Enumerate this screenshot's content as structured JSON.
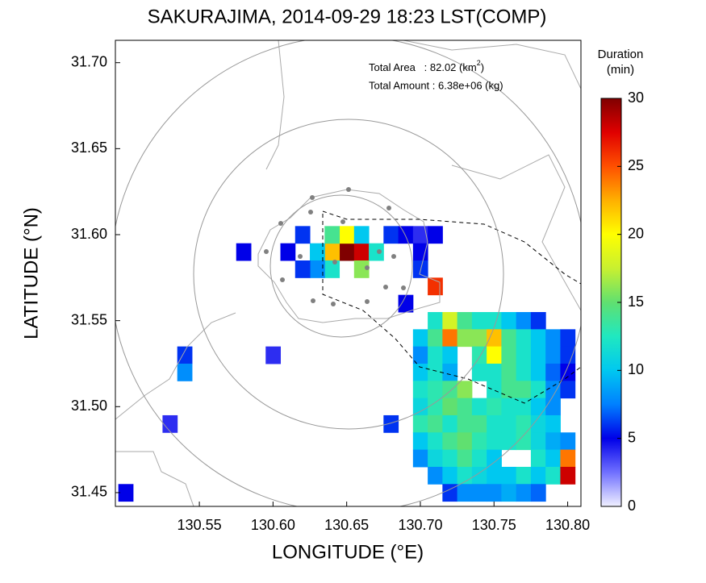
{
  "chart_data": {
    "type": "heatmap",
    "title": "SAKURAJIMA, 2014-09-29 18:23 LST(COMP)",
    "xlabel": "LONGITUDE (°E)",
    "ylabel": "LATITUDE (°N)",
    "xlim": [
      130.493,
      130.809
    ],
    "ylim": [
      31.442,
      31.713
    ],
    "xticks": [
      130.55,
      {
        "value": 130.6,
        "label": "130.60"
      },
      130.65,
      {
        "value": 130.7,
        "label": "130.70"
      },
      130.75,
      {
        "value": 130.8,
        "label": "130.80"
      }
    ],
    "yticks": [
      {
        "value": 31.45,
        "label": "31.45"
      },
      {
        "value": 31.5,
        "label": "31.50"
      },
      {
        "value": 31.55,
        "label": "31.55"
      },
      {
        "value": 31.6,
        "label": "31.60"
      },
      {
        "value": 31.65,
        "label": "31.65"
      },
      {
        "value": 31.7,
        "label": "31.70"
      }
    ],
    "annotations": {
      "area": {
        "text": "Total Area   : 82.02 (km",
        "sup": "2",
        "close": ")"
      },
      "amount": "Total Amount : 6.38e+06 (kg)"
    },
    "colorbar_title": [
      "Duration",
      "(min)"
    ],
    "clim": [
      0,
      30
    ],
    "cticks": [
      0,
      5,
      10,
      15,
      20,
      25,
      30
    ],
    "colormap": [
      "#f0f0ff",
      "#7070ff",
      "#0000e8",
      "#0080ff",
      "#00c8f0",
      "#20e8c0",
      "#60e070",
      "#c8f030",
      "#ffff00",
      "#ffb000",
      "#ff5000",
      "#e00000",
      "#800000"
    ],
    "x": [
      130.65,
      130.66,
      130.64,
      130.65,
      130.64,
      130.63,
      130.62,
      130.61,
      130.66,
      130.67,
      130.66,
      130.64,
      130.63,
      130.62,
      130.68,
      130.69,
      130.7,
      130.7,
      130.71,
      130.7,
      130.71,
      130.69,
      130.58,
      130.54,
      130.54,
      130.6,
      130.53,
      130.5,
      130.68,
      130.71,
      130.72,
      130.73,
      130.74,
      130.75,
      130.76,
      130.77,
      130.78,
      130.7,
      130.71,
      130.72,
      130.73,
      130.74,
      130.75,
      130.76,
      130.77,
      130.78,
      130.79,
      130.8,
      130.7,
      130.71,
      130.72,
      130.74,
      130.75,
      130.76,
      130.77,
      130.78,
      130.79,
      130.8,
      130.7,
      130.71,
      130.72,
      130.74,
      130.75,
      130.76,
      130.77,
      130.78,
      130.79,
      130.8,
      130.7,
      130.71,
      130.72,
      130.73,
      130.75,
      130.76,
      130.77,
      130.78,
      130.79,
      130.8,
      130.7,
      130.71,
      130.72,
      130.73,
      130.74,
      130.75,
      130.76,
      130.77,
      130.78,
      130.79,
      130.7,
      130.71,
      130.72,
      130.73,
      130.74,
      130.75,
      130.76,
      130.77,
      130.78,
      130.79,
      130.7,
      130.71,
      130.72,
      130.73,
      130.74,
      130.75,
      130.76,
      130.77,
      130.78,
      130.79,
      130.8,
      130.7,
      130.71,
      130.72,
      130.73,
      130.74,
      130.75,
      130.78,
      130.79,
      130.8,
      130.71,
      130.72,
      130.73,
      130.74,
      130.75,
      130.76,
      130.77,
      130.78,
      130.79,
      130.8,
      130.72,
      130.73,
      130.74,
      130.75,
      130.76,
      130.77,
      130.78
    ],
    "y": [
      31.59,
      31.59,
      31.59,
      31.6,
      31.6,
      31.59,
      31.6,
      31.59,
      31.6,
      31.59,
      31.58,
      31.58,
      31.58,
      31.58,
      31.6,
      31.6,
      31.6,
      31.59,
      31.6,
      31.58,
      31.57,
      31.56,
      31.59,
      31.53,
      31.52,
      31.53,
      31.49,
      31.45,
      31.49,
      31.55,
      31.55,
      31.55,
      31.55,
      31.55,
      31.55,
      31.55,
      31.55,
      31.54,
      31.54,
      31.54,
      31.54,
      31.54,
      31.54,
      31.54,
      31.54,
      31.54,
      31.54,
      31.54,
      31.53,
      31.53,
      31.53,
      31.53,
      31.53,
      31.53,
      31.53,
      31.53,
      31.53,
      31.53,
      31.52,
      31.52,
      31.52,
      31.52,
      31.52,
      31.52,
      31.52,
      31.52,
      31.52,
      31.52,
      31.51,
      31.51,
      31.51,
      31.51,
      31.51,
      31.51,
      31.51,
      31.51,
      31.51,
      31.51,
      31.5,
      31.5,
      31.5,
      31.5,
      31.5,
      31.5,
      31.5,
      31.5,
      31.5,
      31.5,
      31.49,
      31.49,
      31.49,
      31.49,
      31.49,
      31.49,
      31.49,
      31.49,
      31.49,
      31.49,
      31.48,
      31.48,
      31.48,
      31.48,
      31.48,
      31.48,
      31.48,
      31.48,
      31.48,
      31.48,
      31.48,
      31.47,
      31.47,
      31.47,
      31.47,
      31.47,
      31.47,
      31.47,
      31.47,
      31.47,
      31.46,
      31.46,
      31.46,
      31.46,
      31.46,
      31.46,
      31.46,
      31.46,
      31.46,
      31.46,
      31.45,
      31.45,
      31.45,
      31.45,
      31.45,
      31.45,
      31.45
    ],
    "values": [
      30,
      28,
      22,
      20,
      14,
      10,
      6,
      5,
      10,
      12,
      16,
      12,
      8,
      6,
      6,
      5,
      4,
      5,
      5,
      6,
      26,
      5,
      5,
      6,
      8,
      4,
      4,
      5,
      6,
      12,
      18,
      14,
      12,
      12,
      10,
      8,
      6,
      10,
      14,
      24,
      16,
      16,
      22,
      14,
      12,
      10,
      8,
      6,
      8,
      12,
      10,
      13,
      20,
      14,
      12,
      10,
      8,
      6,
      10,
      12,
      9,
      12,
      12,
      14,
      12,
      10,
      7,
      5,
      12,
      13,
      14,
      16,
      12,
      14,
      14,
      12,
      8,
      6,
      11,
      13,
      15,
      14,
      12,
      13,
      12,
      12,
      10,
      8,
      13,
      14,
      12,
      14,
      14,
      12,
      12,
      13,
      11,
      10,
      10,
      12,
      14,
      15,
      13,
      12,
      12,
      13,
      11,
      9,
      8,
      8,
      11,
      12,
      14,
      12,
      10,
      12,
      10,
      24,
      8,
      10,
      12,
      11,
      10,
      10,
      12,
      10,
      12,
      28,
      6,
      8,
      8,
      8,
      9,
      8,
      7
    ]
  }
}
